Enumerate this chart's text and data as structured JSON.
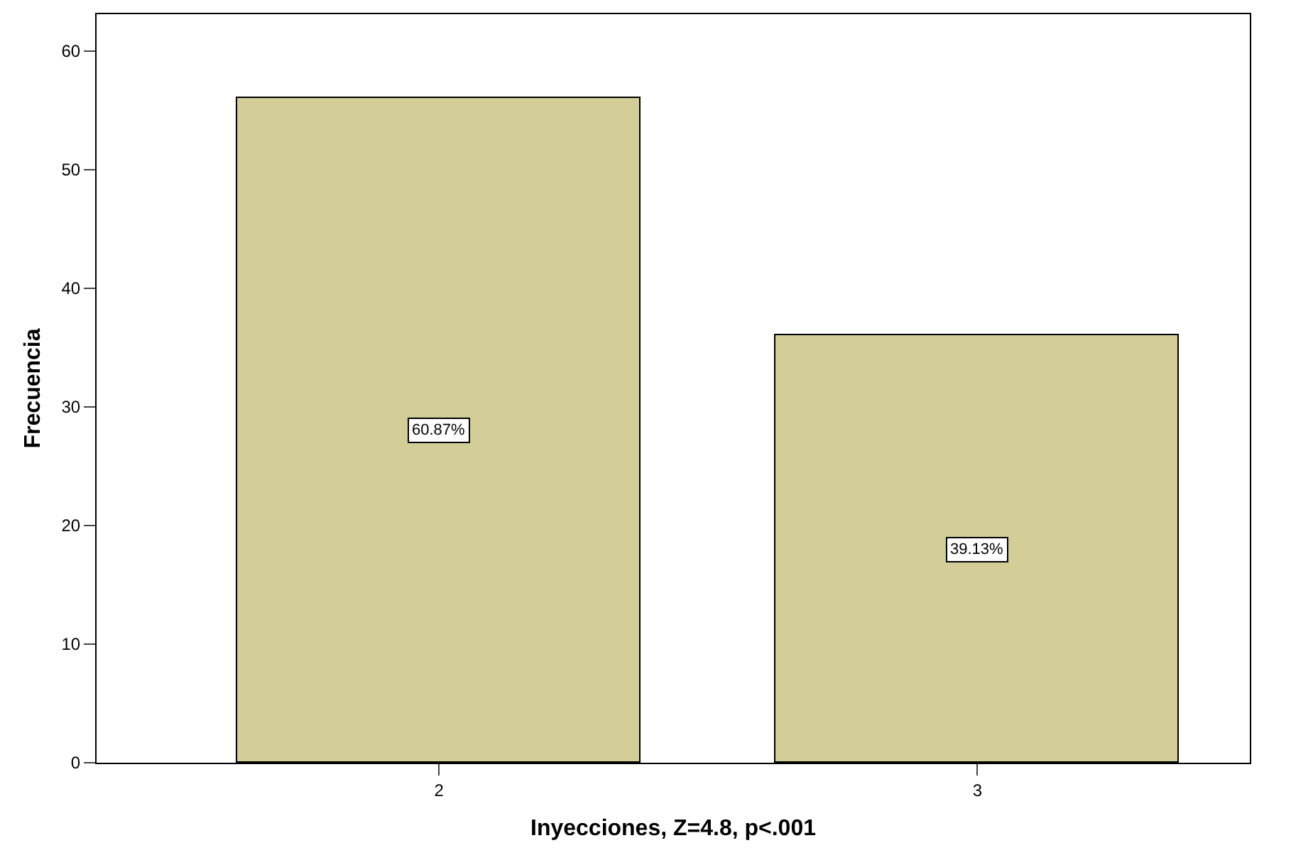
{
  "chart_data": {
    "type": "bar",
    "xlabel": "Inyecciones, Z=4.8, p<.001",
    "ylabel": "Frecuencia",
    "categories": [
      "2",
      "3"
    ],
    "values": [
      56,
      36
    ],
    "color": "#d3ce97",
    "annotations": [
      {
        "text": "60.87%",
        "x": "2",
        "y": 28
      },
      {
        "text": "39.13%",
        "x": "3",
        "y": 18
      }
    ],
    "ylim": [
      0,
      63.1
    ],
    "yticks": [
      0,
      10,
      20,
      30,
      40,
      50,
      60
    ]
  }
}
